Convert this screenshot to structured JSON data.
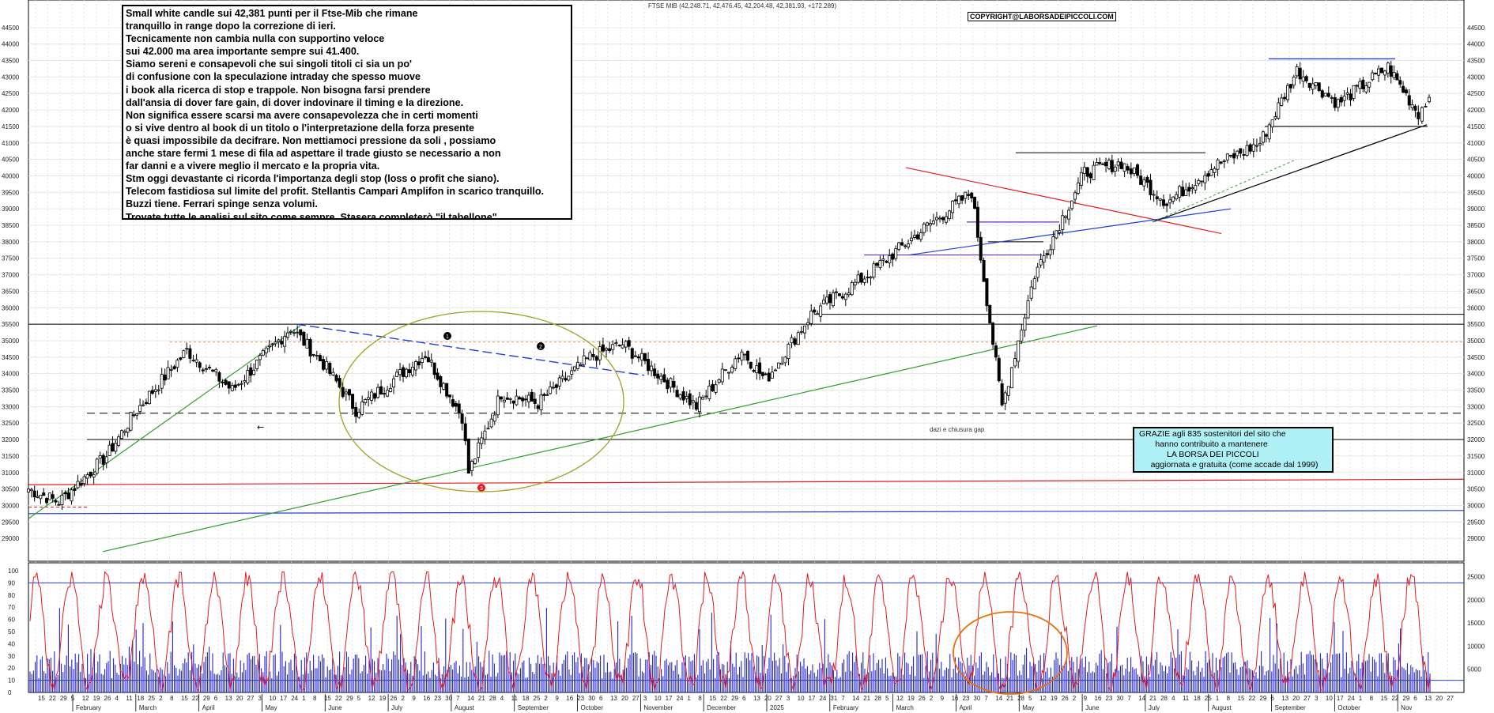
{
  "header": {
    "index_quote": "FTSE MIB (42,248.71, 42,476.45, 42,204.48, 42,381.93, +172.289)",
    "copyright": "COPYRIGHT@LABORSADEIPICCOLI.COM"
  },
  "commentary": {
    "lines": [
      "Small white candle sui 42,381 punti per il Ftse-Mib che rimane",
      "tranquillo in range dopo la correzione di ieri.",
      "Tecnicamente non cambia nulla con supportino veloce",
      "sui 42.000 ma area importante sempre sui 41.400.",
      "Siamo sereni e consapevoli che sui singoli titoli ci sia un po'",
      "di confusione con la speculazione intraday che spesso muove",
      "i book alla ricerca di stop e trappole. Non bisogna farsi prendere",
      "dall'ansia di dover fare gain, di dover indovinare il timing e la direzione.",
      "Non significa essere scarsi ma avere consapevolezza che in certi momenti",
      "o si vive dentro al book di un titolo o l'interpretazione della forza presente",
      "è quasi impossibile da decifrare. Non mettiamoci pressione da soli , possiamo",
      "anche stare fermi 1 mese di fila ad aspettare il trade giusto se necessario a non",
      "far danni e a vivere meglio il mercato e la propria vita.",
      "Stm oggi devastante ci ricorda l'importanza degli stop (loss o profit che siano).",
      "Telecom fastidiosa sul limite del profit. Stellantis Campari Amplifon in scarico tranquillo.",
      "Buzzi tiene. Ferrari spinge senza volumi.",
      "Trovate tutte le analisi sul sito come sempre. Stasera completerò \"il tabellone\""
    ]
  },
  "thanks_box": {
    "lines": [
      "GRAZIE agli 835  sostenitori del sito che",
      "       hanno contribuito a mantenere",
      "            LA BORSA DEI PICCOLI",
      "     aggiornata e gratuita (come accade dal 1999)"
    ]
  },
  "annotations": {
    "dazi_gap": "dazi e chiusura gap",
    "marker_1": "1",
    "marker_2": "2",
    "marker_3": "3"
  },
  "colors": {
    "candle": "#000000",
    "trend_green": "#2ca02c",
    "trend_blue": "#1f3fd6",
    "resistance_red": "#e31a1c",
    "ellipse_olive": "#a0a020",
    "oscillator": "#e31a1c",
    "volume": "#2222cc",
    "ellipse_orange": "#e8700a"
  },
  "chart_data": [
    {
      "type": "candlestick",
      "title": "FTSE MIB",
      "ylim": [
        28500,
        45000
      ],
      "y_ticks": [
        29000,
        29500,
        30000,
        30500,
        31000,
        31500,
        32000,
        32500,
        33000,
        33500,
        34000,
        34500,
        35000,
        35500,
        36000,
        36500,
        37000,
        37500,
        38000,
        38500,
        39000,
        39500,
        40000,
        40500,
        41000,
        41500,
        42000,
        42500,
        43000,
        43500,
        44000,
        44500
      ],
      "date_range": [
        "2024-01-15",
        "2025-10-22"
      ],
      "last_bar": {
        "open": 42248.71,
        "high": 42476.45,
        "low": 42204.48,
        "close": 42381.93,
        "change": 172.289
      },
      "anchor_closes": [
        {
          "date": "2024-01-15",
          "close": 30500
        },
        {
          "date": "2024-01-29",
          "close": 30100
        },
        {
          "date": "2024-02-20",
          "close": 31500
        },
        {
          "date": "2024-03-05",
          "close": 32900
        },
        {
          "date": "2024-03-28",
          "close": 34700
        },
        {
          "date": "2024-04-18",
          "close": 33500
        },
        {
          "date": "2024-05-15",
          "close": 35400
        },
        {
          "date": "2024-05-30",
          "close": 34300
        },
        {
          "date": "2024-06-14",
          "close": 32900
        },
        {
          "date": "2024-07-16",
          "close": 34600
        },
        {
          "date": "2024-08-02",
          "close": 32700
        },
        {
          "date": "2024-08-05",
          "close": 31000
        },
        {
          "date": "2024-08-20",
          "close": 33400
        },
        {
          "date": "2024-09-06",
          "close": 33100
        },
        {
          "date": "2024-09-30",
          "close": 34500
        },
        {
          "date": "2024-10-15",
          "close": 34900
        },
        {
          "date": "2024-11-18",
          "close": 33000
        },
        {
          "date": "2024-12-09",
          "close": 34700
        },
        {
          "date": "2024-12-20",
          "close": 33800
        },
        {
          "date": "2025-01-10",
          "close": 35800
        },
        {
          "date": "2025-02-05",
          "close": 37000
        },
        {
          "date": "2025-03-03",
          "close": 38400
        },
        {
          "date": "2025-03-25",
          "close": 39500
        },
        {
          "date": "2025-04-08",
          "close": 33000
        },
        {
          "date": "2025-04-23",
          "close": 37000
        },
        {
          "date": "2025-05-16",
          "close": 40100
        },
        {
          "date": "2025-06-02",
          "close": 40400
        },
        {
          "date": "2025-06-23",
          "close": 39200
        },
        {
          "date": "2025-07-15",
          "close": 40300
        },
        {
          "date": "2025-08-05",
          "close": 41000
        },
        {
          "date": "2025-08-22",
          "close": 43200
        },
        {
          "date": "2025-09-10",
          "close": 42200
        },
        {
          "date": "2025-10-03",
          "close": 43300
        },
        {
          "date": "2025-10-17",
          "close": 41900
        },
        {
          "date": "2025-10-22",
          "close": 42382
        }
      ],
      "horizontal_levels": [
        35500,
        35800,
        32000,
        32800,
        30700,
        29800
      ]
    },
    {
      "type": "line",
      "name": "oscillator",
      "ylim": [
        0,
        100
      ],
      "y_ticks": [
        0,
        10,
        20,
        30,
        40,
        50,
        60,
        70,
        80,
        90,
        100
      ],
      "levels": [
        10,
        90
      ]
    },
    {
      "type": "bar",
      "name": "volume",
      "ylim": [
        0,
        27000
      ],
      "y_ticks": [
        5000,
        10000,
        15000,
        20000,
        25000
      ]
    }
  ],
  "x_axis": {
    "months": [
      "February",
      "March",
      "April",
      "May",
      "June",
      "July",
      "August",
      "September",
      "October",
      "November",
      "December",
      "2025",
      "February",
      "March",
      "April",
      "May",
      "June",
      "July",
      "August",
      "September",
      "October",
      "Nov"
    ],
    "days": [
      "15",
      "22",
      "29",
      "5",
      "12",
      "19",
      "26",
      "4",
      "11",
      "18",
      "25",
      "2",
      "8",
      "15",
      "22",
      "29",
      "6",
      "13",
      "20",
      "27",
      "3",
      "10",
      "17",
      "24",
      "1",
      "8",
      "15",
      "22",
      "29",
      "5",
      "12",
      "19",
      "26",
      "2",
      "9",
      "16",
      "23",
      "30",
      "7",
      "14",
      "21",
      "28",
      "4",
      "11",
      "18",
      "25",
      "2",
      "9",
      "16",
      "23",
      "30",
      "6",
      "13",
      "20",
      "27",
      "3",
      "10",
      "17",
      "24",
      "1",
      "8",
      "15",
      "22",
      "29",
      "6",
      "13",
      "20",
      "27",
      "3",
      "10",
      "17",
      "24",
      "31",
      "7",
      "14",
      "21",
      "28",
      "5",
      "12",
      "19",
      "26",
      "2",
      "9",
      "16",
      "23",
      "30",
      "7",
      "14",
      "21",
      "28",
      "5",
      "12",
      "19",
      "26",
      "2",
      "9",
      "16",
      "23",
      "30",
      "7",
      "14",
      "21",
      "28",
      "4",
      "11",
      "18",
      "25",
      "1",
      "8",
      "15",
      "22",
      "29",
      "6",
      "13",
      "20",
      "27",
      "3",
      "10",
      "17",
      "24",
      "1",
      "8",
      "15",
      "22",
      "29",
      "6",
      "13",
      "20",
      "27"
    ]
  }
}
